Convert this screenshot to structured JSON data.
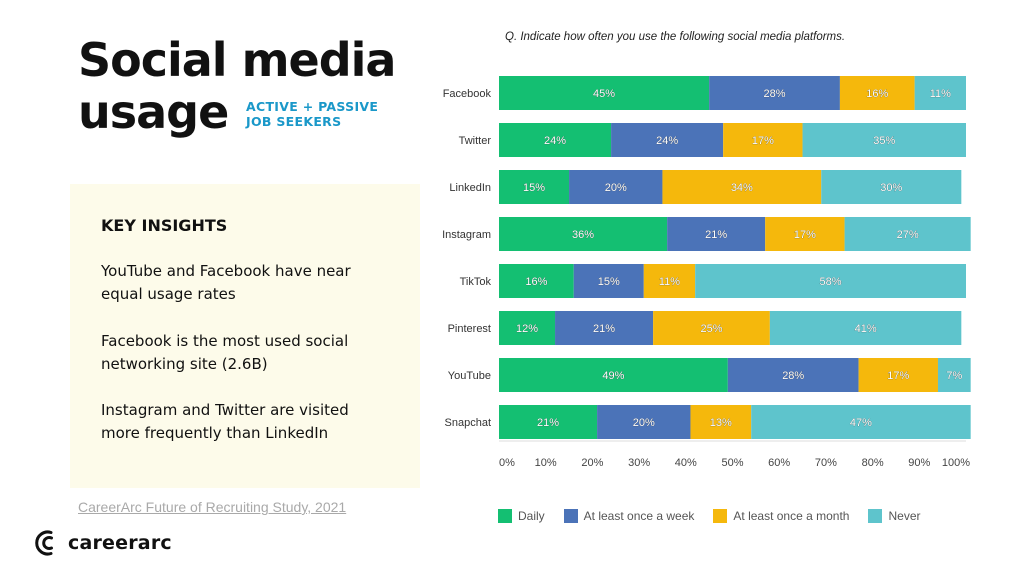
{
  "header": {
    "title_line1": "Social media",
    "title_line2": "usage",
    "subtitle_line1": "ACTIVE + PASSIVE",
    "subtitle_line2": "JOB SEEKERS"
  },
  "insights": {
    "heading": "KEY INSIGHTS",
    "items": [
      "YouTube and Facebook have near equal usage rates",
      "Facebook is the most used social networking site (2.6B)",
      "Instagram and Twitter are visited more frequently than LinkedIn"
    ]
  },
  "source": "CareerArc Future of Recruiting Study, 2021",
  "brand": {
    "name": "careerarc"
  },
  "chart_data": {
    "type": "bar",
    "orientation": "horizontal-stacked",
    "title": "Q. Indicate how often you use the following social media platforms.",
    "categories": [
      "Facebook",
      "Twitter",
      "LinkedIn",
      "Instagram",
      "TikTok",
      "Pinterest",
      "YouTube",
      "Snapchat"
    ],
    "series": [
      {
        "name": "Daily",
        "color": "#14bf72",
        "values": [
          45,
          24,
          15,
          36,
          16,
          12,
          49,
          21
        ]
      },
      {
        "name": "At least once a week",
        "color": "#4b73b8",
        "values": [
          28,
          24,
          20,
          21,
          15,
          21,
          28,
          20
        ]
      },
      {
        "name": "At least once a month",
        "color": "#f5b80c",
        "values": [
          16,
          17,
          34,
          17,
          11,
          25,
          17,
          13
        ]
      },
      {
        "name": "Never",
        "color": "#5ec4cc",
        "values": [
          11,
          35,
          30,
          27,
          58,
          41,
          7,
          47
        ]
      }
    ],
    "xlim": [
      0,
      100
    ],
    "xticks": [
      "0%",
      "10%",
      "20%",
      "30%",
      "40%",
      "50%",
      "60%",
      "70%",
      "80%",
      "90%",
      "100%"
    ],
    "grid": false,
    "legend": "bottom"
  }
}
